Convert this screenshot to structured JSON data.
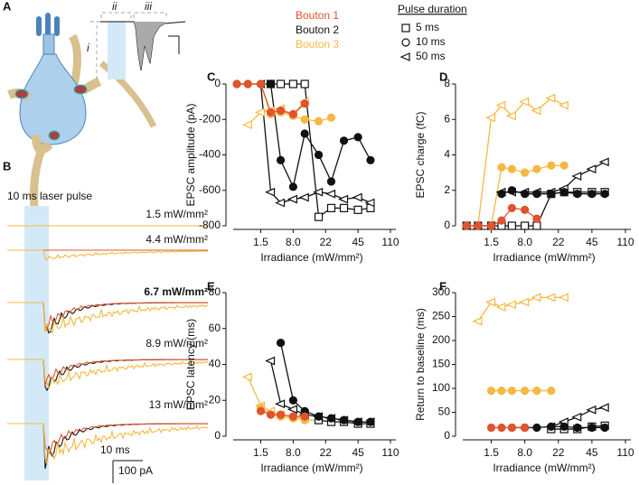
{
  "panel_labels": [
    "A",
    "B",
    "C",
    "D",
    "E",
    "F"
  ],
  "diagram": {
    "labels": [
      "i",
      "ii",
      "iii"
    ]
  },
  "traces": {
    "pulse_label": "10 ms laser pulse",
    "irradiance_labels": [
      "1.5 mW/mm²",
      "4.4 mW/mm²",
      "6.7 mW/mm²",
      "8.9 mW/mm²",
      "13 mW/mm²"
    ],
    "scale_time": "10 ms",
    "scale_amp": "100 pA"
  },
  "legend": {
    "boutons": [
      {
        "name": "Bouton 1",
        "color": "#e0532f"
      },
      {
        "name": "Bouton 2",
        "color": "#111111"
      },
      {
        "name": "Bouton 3",
        "color": "#f4b942"
      }
    ],
    "pulse_title": "Pulse duration",
    "pulses": [
      {
        "name": "5 ms",
        "marker": "square"
      },
      {
        "name": "10 ms",
        "marker": "circle"
      },
      {
        "name": "50 ms",
        "marker": "triangle"
      }
    ]
  },
  "chart_data": [
    {
      "type": "line",
      "y_label": "EPSC amplitude (pA)",
      "x_label": "Irradiance (mW/mm²)",
      "xscale": "piecewise",
      "xlim": [
        0,
        110
      ],
      "xticks": [
        1.5,
        {
          "value": 8,
          "label": "8.0"
        },
        22,
        45,
        110
      ],
      "ylim": [
        -800,
        0
      ],
      "yticks": [
        0,
        -200,
        -400,
        -600,
        -800
      ],
      "series": [
        {
          "color": "#111111",
          "marker": "square",
          "filled": false,
          "x": [
            3.5,
            5.5,
            8,
            13,
            19,
            26,
            35,
            45,
            70
          ],
          "values": [
            0,
            0,
            0,
            0,
            -750,
            -700,
            -700,
            -710,
            -700
          ]
        },
        {
          "color": "#111111",
          "marker": "triangle",
          "filled": false,
          "x": [
            1.5,
            3.5,
            5.5,
            8,
            13,
            19,
            26,
            35,
            45,
            70
          ],
          "values": [
            0,
            -610,
            -670,
            -650,
            -640,
            -610,
            -620,
            -650,
            -640,
            -670
          ]
        },
        {
          "color": "#111111",
          "marker": "circle",
          "filled": true,
          "x": [
            0.2,
            0.8,
            1.5,
            3.5,
            5.5,
            8,
            13,
            19,
            26,
            35,
            45,
            70
          ],
          "values": [
            0,
            0,
            0,
            0,
            -430,
            -580,
            -280,
            -400,
            -550,
            -320,
            -300,
            -430
          ]
        },
        {
          "color": "#f4b942",
          "marker": "triangle",
          "filled": false,
          "x": [
            0.8,
            1.5,
            3.5,
            5.5,
            8,
            13
          ],
          "values": [
            -230,
            -160,
            -150,
            -140,
            -170,
            -100
          ]
        },
        {
          "color": "#f4b942",
          "marker": "circle",
          "filled": true,
          "x": [
            0.2,
            0.8,
            1.5,
            3.5,
            5.5,
            8,
            13,
            19,
            26
          ],
          "values": [
            0,
            0,
            0,
            -170,
            -160,
            -180,
            -200,
            -210,
            -190
          ]
        },
        {
          "color": "#e0532f",
          "marker": "circle",
          "filled": true,
          "x": [
            0.2,
            0.8,
            1.5,
            3.5,
            5.5,
            8,
            13
          ],
          "values": [
            0,
            0,
            0,
            -160,
            -150,
            -170,
            -110
          ]
        }
      ]
    },
    {
      "type": "line",
      "y_label": "EPSC charge (fC)",
      "x_label": "Irradiance (mW/mm²)",
      "xscale": "piecewise",
      "xlim": [
        0,
        110
      ],
      "xticks": [
        1.5,
        {
          "value": 8,
          "label": "8.0"
        },
        22,
        45,
        110
      ],
      "ylim": [
        0,
        8
      ],
      "yticks": [
        0,
        2,
        4,
        6,
        8
      ],
      "series": [
        {
          "color": "#f4b942",
          "marker": "triangle",
          "filled": false,
          "x": [
            0.8,
            1.5,
            3.5,
            5.5,
            8,
            13,
            19,
            26
          ],
          "values": [
            0,
            6.1,
            6.8,
            6.2,
            7,
            6.5,
            7.2,
            6.8
          ]
        },
        {
          "color": "#f4b942",
          "marker": "circle",
          "filled": true,
          "x": [
            0.2,
            0.8,
            1.5,
            3.5,
            5.5,
            8,
            13,
            19,
            26
          ],
          "values": [
            0,
            0,
            0,
            3.3,
            3.2,
            3.0,
            3.2,
            3.4,
            3.4
          ]
        },
        {
          "color": "#111111",
          "marker": "square",
          "filled": false,
          "x": [
            0.2,
            0.8,
            1.5,
            3.5,
            5.5,
            8,
            13,
            19,
            26,
            35,
            45,
            70
          ],
          "values": [
            0,
            0,
            0,
            0,
            0,
            0,
            0,
            1.8,
            1.9,
            1.9,
            1.9,
            1.9
          ]
        },
        {
          "color": "#111111",
          "marker": "triangle",
          "filled": false,
          "x": [
            3.5,
            5.5,
            8,
            13,
            19,
            26,
            35,
            45,
            70
          ],
          "values": [
            1.9,
            1.9,
            1.9,
            1.9,
            1.9,
            2.1,
            2.8,
            3.2,
            3.6
          ]
        },
        {
          "color": "#111111",
          "marker": "circle",
          "filled": true,
          "x": [
            3.5,
            5.5,
            8,
            13,
            19,
            26,
            35,
            45,
            70
          ],
          "values": [
            1.8,
            2,
            1.8,
            1.8,
            1.8,
            1.9,
            1.8,
            1.8,
            1.8
          ]
        },
        {
          "color": "#e0532f",
          "marker": "circle",
          "filled": true,
          "x": [
            0.2,
            0.8,
            1.5,
            3.5,
            5.5,
            8,
            13
          ],
          "values": [
            0,
            0,
            0,
            0.3,
            1,
            0.9,
            0.4
          ]
        }
      ]
    },
    {
      "type": "line",
      "y_label": "EPSC latency (ms)",
      "x_label": "Irradiance (mW/mm²)",
      "xscale": "piecewise",
      "xlim": [
        0,
        110
      ],
      "xticks": [
        1.5,
        {
          "value": 8,
          "label": "8.0"
        },
        22,
        45,
        110
      ],
      "ylim": [
        0,
        80
      ],
      "yticks": [
        0,
        20,
        40,
        60,
        80
      ],
      "series": [
        {
          "color": "#f4b942",
          "marker": "triangle",
          "filled": false,
          "x": [
            0.8,
            1.5,
            3.5,
            5.5,
            8,
            13
          ],
          "values": [
            33,
            17,
            14,
            12,
            11,
            10
          ]
        },
        {
          "color": "#f4b942",
          "marker": "circle",
          "filled": true,
          "x": [
            1.5,
            3.5,
            5.5,
            8,
            13,
            19
          ],
          "values": [
            16,
            12,
            11,
            10,
            9,
            9
          ]
        },
        {
          "color": "#111111",
          "marker": "square",
          "filled": false,
          "x": [
            19,
            26,
            35,
            45,
            70
          ],
          "values": [
            9,
            8,
            8,
            7,
            7
          ]
        },
        {
          "color": "#111111",
          "marker": "triangle",
          "filled": false,
          "x": [
            3.5,
            5.5,
            8,
            13,
            19,
            26,
            35,
            45,
            70
          ],
          "values": [
            42,
            18,
            15,
            12,
            11,
            10,
            9,
            8,
            8
          ]
        },
        {
          "color": "#111111",
          "marker": "circle",
          "filled": true,
          "x": [
            5.5,
            8,
            13,
            19,
            26,
            35,
            45,
            70
          ],
          "values": [
            52,
            20,
            14,
            11,
            10,
            9,
            8,
            8
          ]
        },
        {
          "color": "#e0532f",
          "marker": "circle",
          "filled": true,
          "x": [
            1.5,
            3.5,
            5.5,
            8,
            13
          ],
          "values": [
            14,
            12,
            12,
            11,
            11
          ]
        }
      ]
    },
    {
      "type": "line",
      "y_label": "Return to baseline (ms)",
      "x_label": "Irradiance (mW/mm²)",
      "xscale": "piecewise",
      "xlim": [
        0,
        110
      ],
      "xticks": [
        1.5,
        {
          "value": 8,
          "label": "8.0"
        },
        22,
        45,
        110
      ],
      "ylim": [
        0,
        300
      ],
      "yticks": [
        0,
        50,
        100,
        150,
        200,
        250,
        300
      ],
      "series": [
        {
          "color": "#f4b942",
          "marker": "triangle",
          "filled": false,
          "x": [
            0.8,
            1.5,
            3.5,
            5.5,
            8,
            13,
            19,
            26
          ],
          "values": [
            240,
            280,
            270,
            275,
            280,
            290,
            290,
            290
          ]
        },
        {
          "color": "#f4b942",
          "marker": "circle",
          "filled": true,
          "x": [
            1.5,
            3.5,
            5.5,
            8,
            13,
            19
          ],
          "values": [
            95,
            95,
            95,
            95,
            95,
            95
          ]
        },
        {
          "color": "#111111",
          "marker": "triangle",
          "filled": false,
          "x": [
            19,
            26,
            35,
            45,
            70
          ],
          "values": [
            20,
            30,
            40,
            55,
            60
          ]
        },
        {
          "color": "#111111",
          "marker": "square",
          "filled": false,
          "x": [
            19,
            26,
            35,
            45,
            70
          ],
          "values": [
            15,
            15,
            15,
            20,
            22
          ]
        },
        {
          "color": "#111111",
          "marker": "circle",
          "filled": true,
          "x": [
            5.5,
            8,
            13,
            19,
            26,
            35,
            45,
            70
          ],
          "values": [
            18,
            18,
            18,
            20,
            20,
            18,
            18,
            18
          ]
        },
        {
          "color": "#e0532f",
          "marker": "circle",
          "filled": true,
          "x": [
            1.5,
            3.5,
            5.5,
            8
          ],
          "values": [
            18,
            18,
            18,
            18
          ]
        }
      ]
    }
  ]
}
